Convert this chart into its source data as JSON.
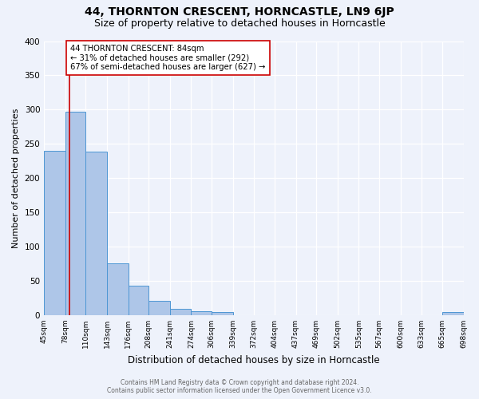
{
  "title": "44, THORNTON CRESCENT, HORNCASTLE, LN9 6JP",
  "subtitle": "Size of property relative to detached houses in Horncastle",
  "xlabel": "Distribution of detached houses by size in Horncastle",
  "ylabel": "Number of detached properties",
  "bin_edges": [
    45,
    78,
    110,
    143,
    176,
    208,
    241,
    274,
    306,
    339,
    372,
    404,
    437,
    469,
    502,
    535,
    567,
    600,
    633,
    665,
    698
  ],
  "bin_counts": [
    240,
    297,
    239,
    76,
    43,
    21,
    9,
    6,
    5,
    0,
    0,
    0,
    0,
    0,
    0,
    0,
    0,
    0,
    0,
    4
  ],
  "bar_color": "#aec6e8",
  "bar_edge_color": "#4d96d4",
  "property_line_x": 84,
  "property_line_color": "#cc0000",
  "annotation_text": "44 THORNTON CRESCENT: 84sqm\n← 31% of detached houses are smaller (292)\n67% of semi-detached houses are larger (627) →",
  "annotation_box_color": "#ffffff",
  "annotation_box_edge_color": "#cc0000",
  "ylim": [
    0,
    400
  ],
  "yticks": [
    0,
    50,
    100,
    150,
    200,
    250,
    300,
    350,
    400
  ],
  "tick_labels": [
    "45sqm",
    "78sqm",
    "110sqm",
    "143sqm",
    "176sqm",
    "208sqm",
    "241sqm",
    "274sqm",
    "306sqm",
    "339sqm",
    "372sqm",
    "404sqm",
    "437sqm",
    "469sqm",
    "502sqm",
    "535sqm",
    "567sqm",
    "600sqm",
    "633sqm",
    "665sqm",
    "698sqm"
  ],
  "footer_line1": "Contains HM Land Registry data © Crown copyright and database right 2024.",
  "footer_line2": "Contains public sector information licensed under the Open Government Licence v3.0.",
  "background_color": "#eef2fb",
  "grid_color": "#ffffff",
  "title_fontsize": 10,
  "subtitle_fontsize": 9,
  "ylabel_fontsize": 8,
  "xlabel_fontsize": 8.5,
  "annotation_fontsize": 7.2,
  "tick_fontsize": 6.5,
  "footer_fontsize": 5.5
}
